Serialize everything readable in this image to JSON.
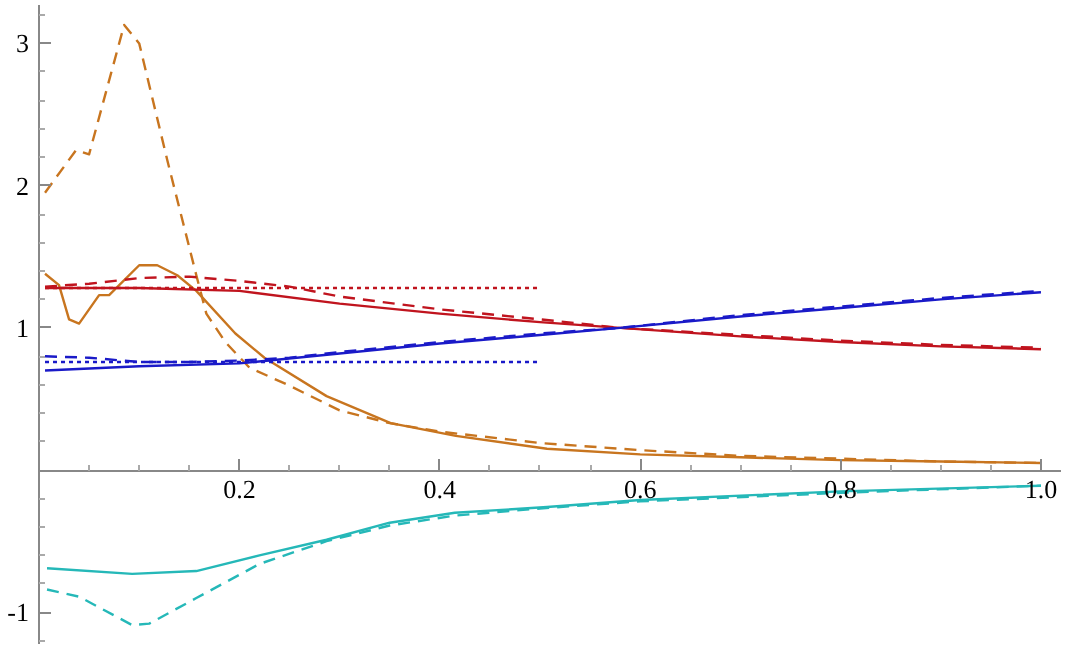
{
  "chart_data": {
    "type": "line",
    "xlim": [
      0,
      1.02
    ],
    "ylim": [
      -1.23,
      3.27
    ],
    "xticks": [
      0.2,
      0.4,
      0.6,
      0.8,
      {
        "value": 1,
        "label": "1.0"
      },
      {
        "value": 0.05,
        "label": null
      },
      {
        "value": 0.1,
        "label": null
      },
      {
        "value": 0.15,
        "label": null
      },
      {
        "value": 0.25,
        "label": null
      },
      {
        "value": 0.3,
        "label": null
      },
      {
        "value": 0.35,
        "label": null
      },
      {
        "value": 0.45,
        "label": null
      },
      {
        "value": 0.5,
        "label": null
      },
      {
        "value": 0.55,
        "label": null
      },
      {
        "value": 0.65,
        "label": null
      },
      {
        "value": 0.7,
        "label": null
      },
      {
        "value": 0.75,
        "label": null
      },
      {
        "value": 0.85,
        "label": null
      },
      {
        "value": 0.9,
        "label": null
      },
      {
        "value": 0.95,
        "label": null
      }
    ],
    "yticks": [
      -1,
      1,
      2,
      3,
      {
        "value": -1.2,
        "label": null
      },
      {
        "value": -0.8,
        "label": null
      },
      {
        "value": -0.6,
        "label": null
      },
      {
        "value": -0.4,
        "label": null
      },
      {
        "value": -0.2,
        "label": null
      },
      {
        "value": 0.2,
        "label": null
      },
      {
        "value": 0.4,
        "label": null
      },
      {
        "value": 0.6,
        "label": null
      },
      {
        "value": 0.8,
        "label": null
      },
      {
        "value": 1.2,
        "label": null
      },
      {
        "value": 1.4,
        "label": null
      },
      {
        "value": 1.6,
        "label": null
      },
      {
        "value": 1.8,
        "label": null
      },
      {
        "value": 2.2,
        "label": null
      },
      {
        "value": 2.4,
        "label": null
      },
      {
        "value": 2.6,
        "label": null
      },
      {
        "value": 2.8,
        "label": null
      },
      {
        "value": 3.2,
        "label": null
      }
    ],
    "grid": false,
    "marker": "none",
    "series": [
      {
        "color": "#c8751f",
        "line_style": "dashed",
        "x": [
          0.006,
          0.037,
          0.05,
          0.085,
          0.1,
          0.128,
          0.157,
          0.167,
          0.186,
          0.21,
          0.248,
          0.3,
          0.35,
          0.4,
          0.5,
          0.6,
          0.7,
          0.8,
          0.9,
          1.0
        ],
        "values": [
          1.95,
          2.25,
          2.22,
          3.13,
          3.0,
          2.18,
          1.37,
          1.1,
          0.9,
          0.72,
          0.6,
          0.42,
          0.33,
          0.27,
          0.19,
          0.14,
          0.1,
          0.08,
          0.06,
          0.05
        ]
      },
      {
        "color": "#c8751f",
        "line_style": "solid",
        "x": [
          0.006,
          0.02,
          0.03,
          0.04,
          0.06,
          0.07,
          0.1,
          0.118,
          0.138,
          0.157,
          0.196,
          0.225,
          0.287,
          0.351,
          0.416,
          0.507,
          0.6,
          0.7,
          0.8,
          0.9,
          1.0
        ],
        "values": [
          1.38,
          1.3,
          1.06,
          1.03,
          1.23,
          1.23,
          1.44,
          1.44,
          1.37,
          1.26,
          0.96,
          0.79,
          0.52,
          0.33,
          0.24,
          0.15,
          0.11,
          0.09,
          0.07,
          0.06,
          0.05
        ]
      },
      {
        "color": "#c0141e",
        "line_style": "solid",
        "x": [
          0.006,
          0.1,
          0.2,
          0.3,
          0.4,
          0.5,
          0.58,
          0.7,
          0.8,
          0.9,
          1.0
        ],
        "values": [
          1.28,
          1.28,
          1.26,
          1.17,
          1.1,
          1.04,
          1.0,
          0.94,
          0.9,
          0.87,
          0.85
        ]
      },
      {
        "color": "#c0141e",
        "line_style": "dashed",
        "x": [
          0.006,
          0.05,
          0.1,
          0.15,
          0.2,
          0.25,
          0.3,
          0.4,
          0.5,
          0.58,
          0.7,
          0.8,
          0.9,
          1.0
        ],
        "values": [
          1.29,
          1.31,
          1.35,
          1.36,
          1.33,
          1.29,
          1.22,
          1.13,
          1.06,
          1.0,
          0.95,
          0.91,
          0.88,
          0.86
        ]
      },
      {
        "color": "#c0141e",
        "line_style": "dotted",
        "x": [
          0.006,
          0.5
        ],
        "values": [
          1.28,
          1.28
        ]
      },
      {
        "color": "#1a1ac8",
        "line_style": "solid",
        "x": [
          0.006,
          0.1,
          0.2,
          0.3,
          0.4,
          0.5,
          0.58,
          0.7,
          0.8,
          0.9,
          1.0
        ],
        "values": [
          0.7,
          0.73,
          0.75,
          0.82,
          0.89,
          0.95,
          1.0,
          1.08,
          1.14,
          1.2,
          1.25
        ]
      },
      {
        "color": "#1a1ac8",
        "line_style": "dashed",
        "x": [
          0.006,
          0.05,
          0.1,
          0.15,
          0.2,
          0.25,
          0.3,
          0.4,
          0.5,
          0.58,
          0.7,
          0.8,
          0.9,
          1.0
        ],
        "values": [
          0.8,
          0.79,
          0.76,
          0.76,
          0.77,
          0.79,
          0.83,
          0.9,
          0.96,
          1.0,
          1.09,
          1.15,
          1.21,
          1.26
        ]
      },
      {
        "color": "#1a1ac8",
        "line_style": "dotted",
        "x": [
          0.006,
          0.5
        ],
        "values": [
          0.76,
          0.76
        ]
      },
      {
        "color": "#25b8b8",
        "line_style": "solid",
        "x": [
          0.008,
          0.093,
          0.157,
          0.22,
          0.287,
          0.35,
          0.415,
          0.507,
          0.6,
          0.8,
          1.0
        ],
        "values": [
          -0.69,
          -0.73,
          -0.71,
          -0.6,
          -0.49,
          -0.37,
          -0.3,
          -0.26,
          -0.21,
          -0.15,
          -0.11
        ]
      },
      {
        "color": "#25b8b8",
        "line_style": "dashed",
        "x": [
          0.008,
          0.04,
          0.093,
          0.11,
          0.157,
          0.22,
          0.287,
          0.35,
          0.415,
          0.5,
          0.6,
          0.8,
          1.0
        ],
        "values": [
          -0.84,
          -0.89,
          -1.09,
          -1.08,
          -0.9,
          -0.66,
          -0.5,
          -0.39,
          -0.32,
          -0.27,
          -0.22,
          -0.16,
          -0.11
        ]
      }
    ]
  }
}
